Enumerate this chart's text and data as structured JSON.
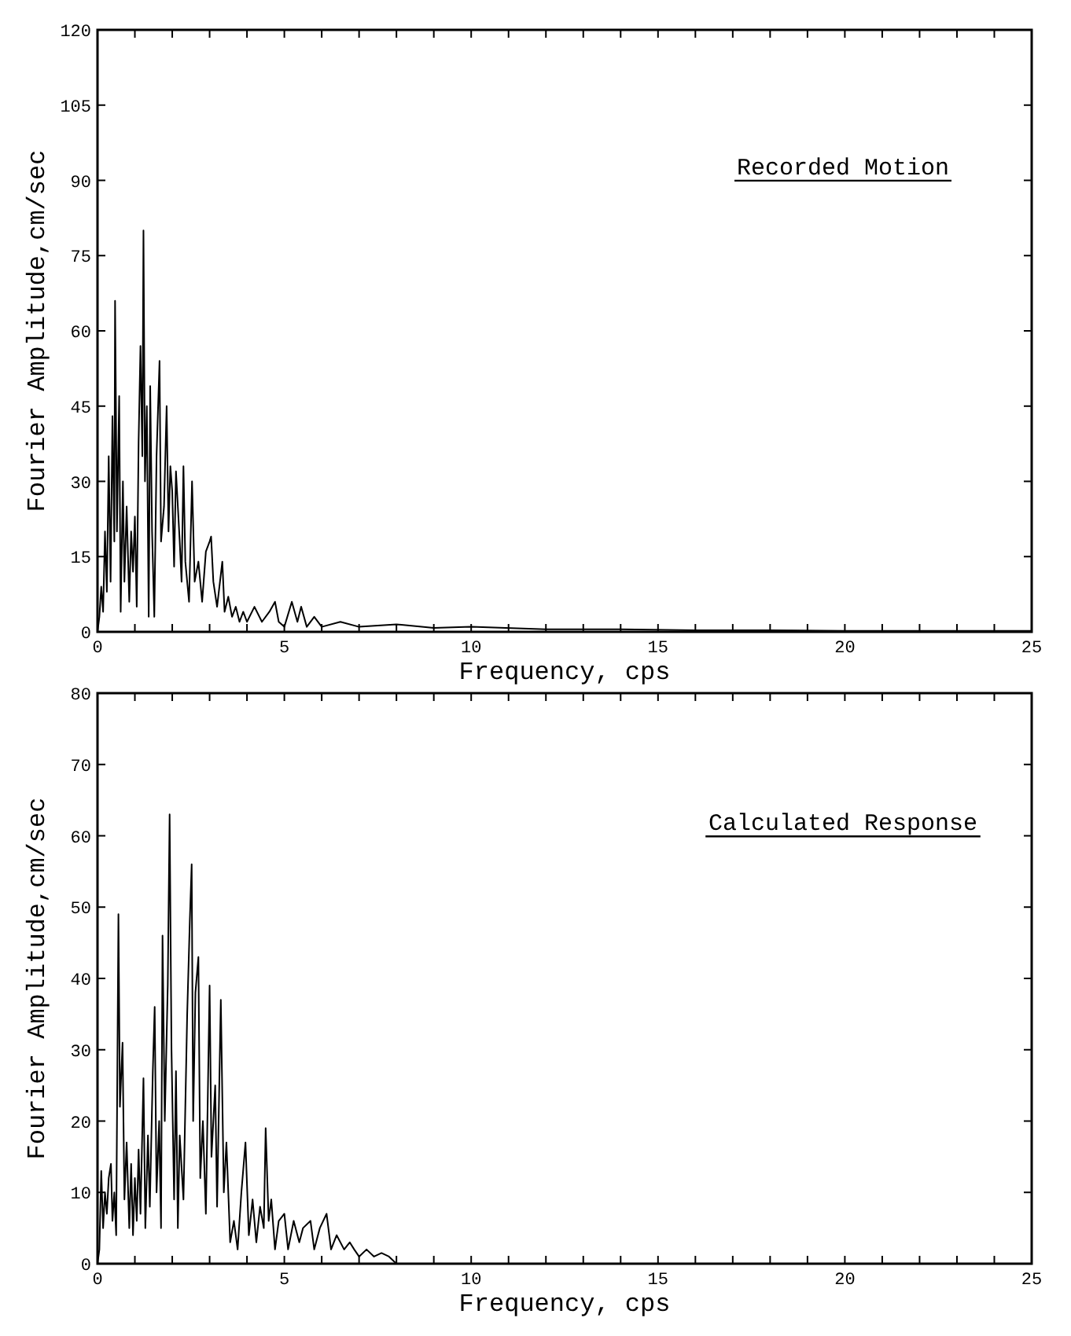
{
  "chart_data": [
    {
      "type": "line",
      "xlabel": "Frequency, cps",
      "ylabel": "Fourier Amplitude,cm/sec",
      "annotations": [
        "Recorded Motion"
      ],
      "xlim": [
        0,
        25
      ],
      "ylim": [
        0,
        120
      ],
      "xticks": [
        0,
        {
          "value": 1,
          "label": null
        },
        {
          "value": 2,
          "label": null
        },
        {
          "value": 3,
          "label": null
        },
        {
          "value": 4,
          "label": null
        },
        5,
        {
          "value": 6,
          "label": null
        },
        {
          "value": 7,
          "label": null
        },
        {
          "value": 8,
          "label": null
        },
        {
          "value": 9,
          "label": null
        },
        10,
        {
          "value": 11,
          "label": null
        },
        {
          "value": 12,
          "label": null
        },
        {
          "value": 13,
          "label": null
        },
        {
          "value": 14,
          "label": null
        },
        15,
        {
          "value": 16,
          "label": null
        },
        {
          "value": 17,
          "label": null
        },
        {
          "value": 18,
          "label": null
        },
        {
          "value": 19,
          "label": null
        },
        20,
        {
          "value": 21,
          "label": null
        },
        {
          "value": 22,
          "label": null
        },
        {
          "value": 23,
          "label": null
        },
        {
          "value": 24,
          "label": null
        },
        25
      ],
      "yticks": [
        0,
        15,
        30,
        45,
        60,
        75,
        90,
        105,
        120
      ],
      "series": [
        {
          "color": "#000000",
          "x": [
            0,
            0.05,
            0.1,
            0.15,
            0.2,
            0.25,
            0.3,
            0.35,
            0.4,
            0.45,
            0.47,
            0.52,
            0.58,
            0.62,
            0.68,
            0.72,
            0.78,
            0.85,
            0.9,
            0.95,
            1.0,
            1.05,
            1.1,
            1.15,
            1.2,
            1.23,
            1.27,
            1.32,
            1.37,
            1.41,
            1.46,
            1.52,
            1.58,
            1.66,
            1.7,
            1.78,
            1.85,
            1.9,
            1.95,
            2.0,
            2.05,
            2.1,
            2.2,
            2.25,
            2.3,
            2.35,
            2.45,
            2.53,
            2.6,
            2.7,
            2.8,
            2.9,
            3.0,
            3.04,
            3.1,
            3.2,
            3.34,
            3.4,
            3.5,
            3.6,
            3.7,
            3.8,
            3.9,
            4.0,
            4.2,
            4.4,
            4.6,
            4.75,
            4.85,
            5.0,
            5.2,
            5.35,
            5.45,
            5.6,
            5.8,
            6.0,
            6.5,
            7,
            8,
            9,
            10,
            12,
            14,
            16,
            18,
            20,
            22,
            25
          ],
          "values": [
            0,
            3,
            9,
            4,
            20,
            8,
            35,
            10,
            43,
            18,
            66,
            20,
            47,
            4,
            30,
            10,
            25,
            6,
            20,
            12,
            23,
            5,
            38,
            57,
            35,
            80,
            30,
            45,
            3,
            49,
            20,
            3,
            35,
            54,
            18,
            25,
            45,
            20,
            33,
            28,
            13,
            32,
            18,
            10,
            33,
            14,
            6,
            30,
            10,
            14,
            6,
            16,
            18,
            19,
            10,
            5,
            14,
            4,
            7,
            3,
            5,
            2,
            4,
            2,
            5,
            2,
            4,
            6,
            2,
            1,
            6,
            2,
            5,
            1,
            3,
            1,
            2,
            1,
            1.5,
            0.8,
            1,
            0.5,
            0.5,
            0.3,
            0.3,
            0.2,
            0.2,
            0.2
          ]
        }
      ]
    },
    {
      "type": "line",
      "xlabel": "Frequency, cps",
      "ylabel": "Fourier Amplitude,cm/sec",
      "annotations": [
        "Calculated Response"
      ],
      "xlim": [
        0,
        25
      ],
      "ylim": [
        0,
        80
      ],
      "xticks": [
        0,
        {
          "value": 1,
          "label": null
        },
        {
          "value": 2,
          "label": null
        },
        {
          "value": 3,
          "label": null
        },
        {
          "value": 4,
          "label": null
        },
        5,
        {
          "value": 6,
          "label": null
        },
        {
          "value": 7,
          "label": null
        },
        {
          "value": 8,
          "label": null
        },
        {
          "value": 9,
          "label": null
        },
        10,
        {
          "value": 11,
          "label": null
        },
        {
          "value": 12,
          "label": null
        },
        {
          "value": 13,
          "label": null
        },
        {
          "value": 14,
          "label": null
        },
        15,
        {
          "value": 16,
          "label": null
        },
        {
          "value": 17,
          "label": null
        },
        {
          "value": 18,
          "label": null
        },
        {
          "value": 19,
          "label": null
        },
        20,
        {
          "value": 21,
          "label": null
        },
        {
          "value": 22,
          "label": null
        },
        {
          "value": 23,
          "label": null
        },
        {
          "value": 24,
          "label": null
        },
        25
      ],
      "yticks": [
        0,
        10,
        20,
        30,
        40,
        50,
        60,
        70,
        80
      ],
      "series": [
        {
          "color": "#000000",
          "x": [
            0,
            0.05,
            0.1,
            0.15,
            0.2,
            0.25,
            0.3,
            0.36,
            0.4,
            0.45,
            0.5,
            0.56,
            0.6,
            0.67,
            0.72,
            0.78,
            0.85,
            0.9,
            0.95,
            1.0,
            1.05,
            1.1,
            1.15,
            1.23,
            1.28,
            1.35,
            1.4,
            1.48,
            1.53,
            1.58,
            1.65,
            1.7,
            1.74,
            1.8,
            1.88,
            1.93,
            1.98,
            2.05,
            2.1,
            2.15,
            2.2,
            2.3,
            2.4,
            2.47,
            2.52,
            2.56,
            2.62,
            2.7,
            2.75,
            2.82,
            2.9,
            3.0,
            3.05,
            3.15,
            3.2,
            3.3,
            3.38,
            3.45,
            3.55,
            3.65,
            3.75,
            3.85,
            3.96,
            4.05,
            4.15,
            4.25,
            4.35,
            4.45,
            4.5,
            4.58,
            4.65,
            4.75,
            4.85,
            5.0,
            5.1,
            5.25,
            5.4,
            5.5,
            5.7,
            5.8,
            5.95,
            6.13,
            6.25,
            6.4,
            6.6,
            6.75,
            6.87,
            7.0,
            7.2,
            7.4,
            7.6,
            7.8,
            8.0
          ],
          "values": [
            0,
            2,
            13,
            5,
            10,
            7,
            12,
            14,
            6,
            10,
            4,
            49,
            22,
            31,
            9,
            17,
            5,
            14,
            4,
            12,
            6,
            16,
            7,
            26,
            5,
            18,
            8,
            27,
            36,
            10,
            20,
            5,
            46,
            20,
            39,
            63,
            30,
            9,
            27,
            5,
            18,
            9,
            35,
            48,
            56,
            20,
            38,
            43,
            12,
            20,
            7,
            39,
            15,
            25,
            8,
            37,
            10,
            17,
            3,
            6,
            2,
            10,
            17,
            4,
            9,
            3,
            8,
            5,
            19,
            6,
            9,
            2,
            6,
            7,
            2,
            6,
            3,
            5,
            6,
            2,
            5,
            7,
            2,
            4,
            2,
            3,
            2,
            1,
            2,
            1,
            1.5,
            1,
            0
          ]
        }
      ]
    }
  ]
}
